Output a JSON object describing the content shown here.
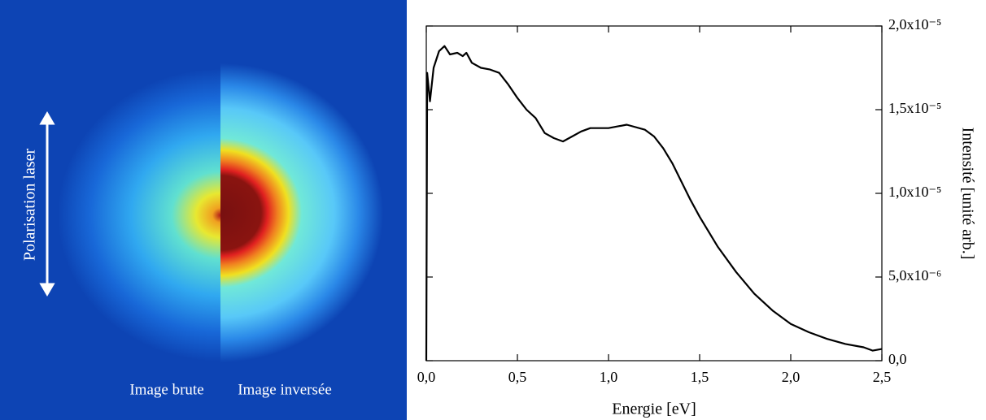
{
  "image": {
    "left_label": "Image brute",
    "right_label": "Image inversée",
    "polarisation": "Polarisation laser"
  },
  "chart_data": {
    "type": "line",
    "x_label": "Energie [eV]",
    "y_label": "Intensité [unité arb.]",
    "x": [
      0,
      0.005,
      0.02,
      0.04,
      0.07,
      0.1,
      0.13,
      0.17,
      0.2,
      0.22,
      0.25,
      0.3,
      0.35,
      0.4,
      0.45,
      0.5,
      0.55,
      0.6,
      0.65,
      0.7,
      0.75,
      0.8,
      0.85,
      0.9,
      1.0,
      1.05,
      1.1,
      1.2,
      1.25,
      1.3,
      1.35,
      1.4,
      1.45,
      1.5,
      1.6,
      1.7,
      1.8,
      1.9,
      2.0,
      2.1,
      2.2,
      2.3,
      2.4,
      2.45,
      2.5
    ],
    "series": [
      {
        "color": "#000000",
        "values": [
          0,
          1.72e-05,
          1.55e-05,
          1.75e-05,
          1.85e-05,
          1.88e-05,
          1.83e-05,
          1.84e-05,
          1.82e-05,
          1.84e-05,
          1.78e-05,
          1.75e-05,
          1.74e-05,
          1.72e-05,
          1.65e-05,
          1.57e-05,
          1.5e-05,
          1.45e-05,
          1.36e-05,
          1.33e-05,
          1.31e-05,
          1.34e-05,
          1.37e-05,
          1.39e-05,
          1.39e-05,
          1.4e-05,
          1.41e-05,
          1.38e-05,
          1.34e-05,
          1.27e-05,
          1.18e-05,
          1.07e-05,
          9.6e-06,
          8.6e-06,
          6.8e-06,
          5.3e-06,
          4e-06,
          3e-06,
          2.2e-06,
          1.7e-06,
          1.3e-06,
          1e-06,
          8e-07,
          6e-07,
          7e-07
        ]
      }
    ],
    "xlim": [
      0,
      2.5
    ],
    "xticks": [
      {
        "value": 0,
        "label": "0,0"
      },
      {
        "value": 0.5,
        "label": "0,5"
      },
      {
        "value": 1,
        "label": "1,0"
      },
      {
        "value": 1.5,
        "label": "1,5"
      },
      {
        "value": 2,
        "label": "2,0"
      },
      {
        "value": 2.5,
        "label": "2,5"
      }
    ],
    "ylim": [
      0,
      2e-05
    ],
    "yticks": [
      {
        "value": 0,
        "label": "0,0"
      },
      {
        "value": 5e-06,
        "label": "5,0x10⁻⁶"
      },
      {
        "value": 1e-05,
        "label": "1,0x10⁻⁵"
      },
      {
        "value": 1.5e-05,
        "label": "1,5x10⁻⁵"
      },
      {
        "value": 2e-05,
        "label": "2,0x10⁻⁵"
      }
    ]
  }
}
